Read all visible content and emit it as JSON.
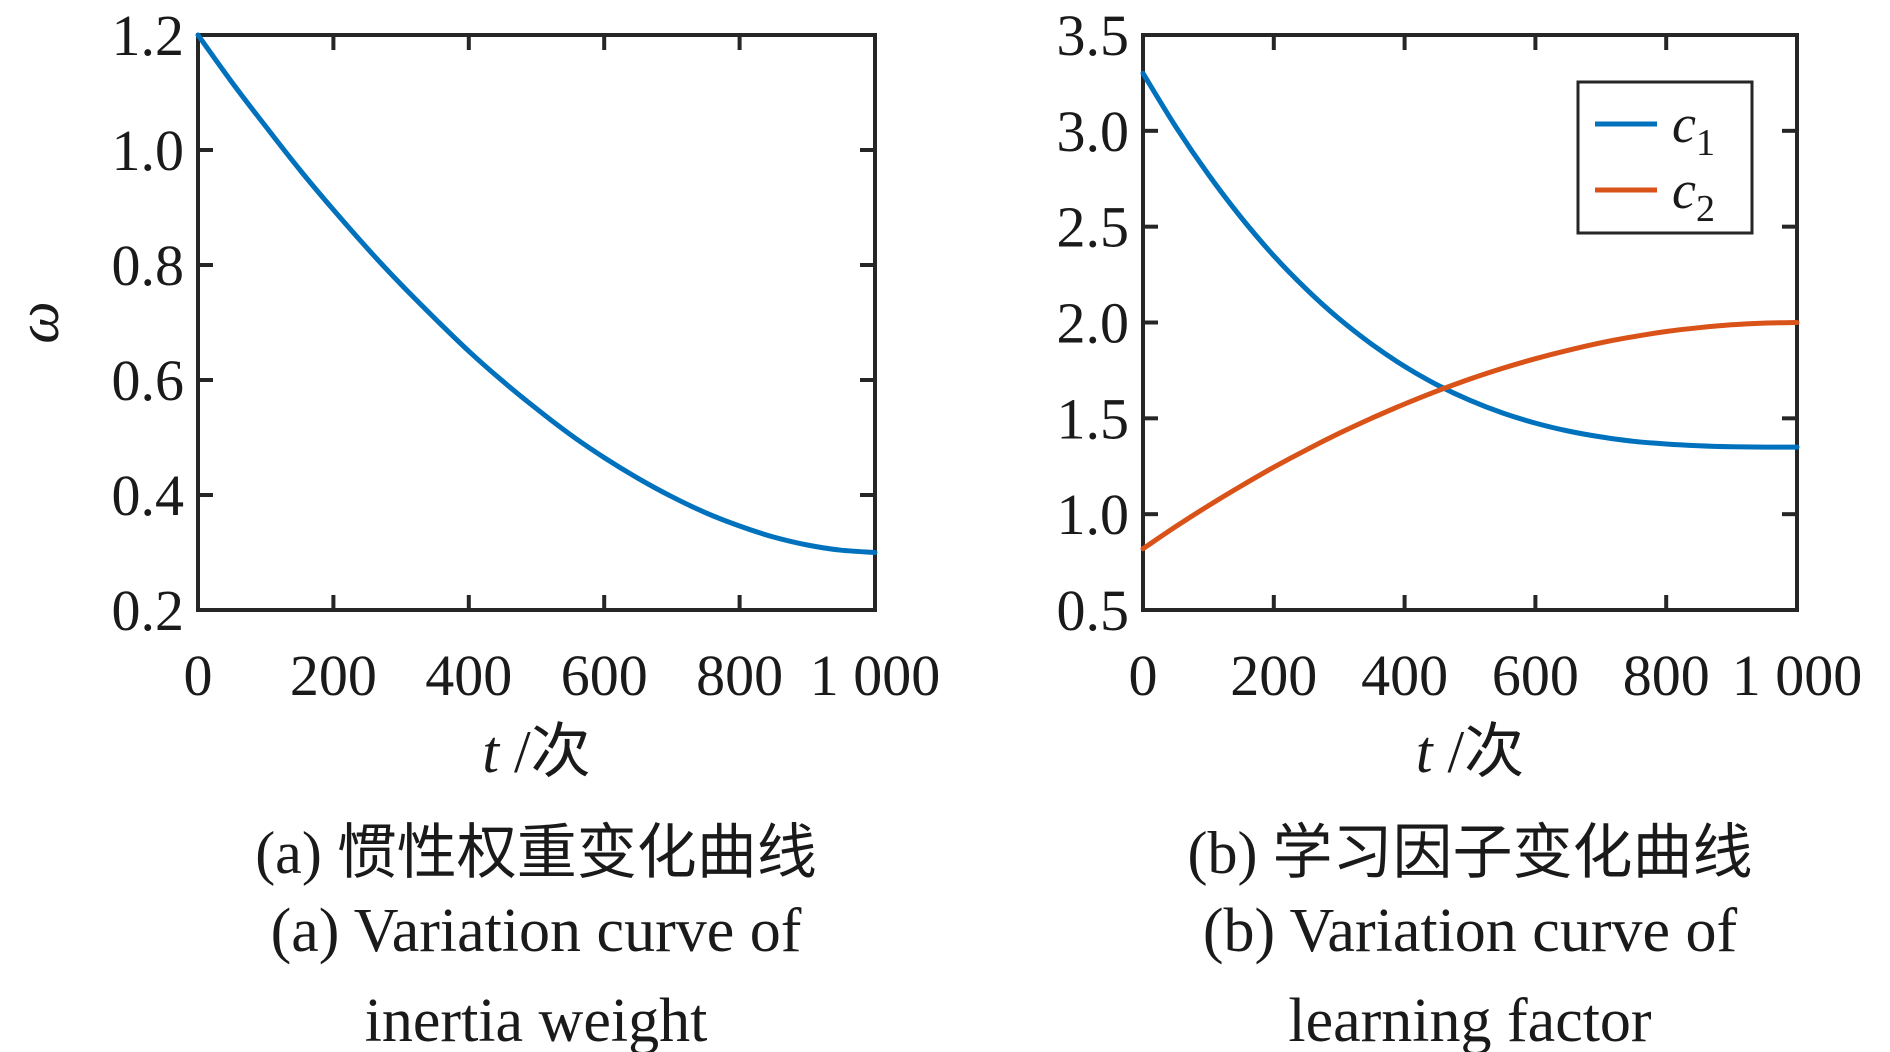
{
  "figure": {
    "background": "#ffffff",
    "axis_color": "#262626",
    "text_color": "#1a1a1a"
  },
  "chart_data": [
    {
      "id": "a",
      "type": "line",
      "title": "",
      "xlabel_var": "t",
      "xlabel_unit": " /次",
      "ylabel": "ω",
      "xlim": [
        0,
        1000
      ],
      "ylim": [
        0.2,
        1.2
      ],
      "grid": false,
      "xticks": [
        0,
        200,
        400,
        600,
        800,
        1000
      ],
      "xtick_labels": [
        "0",
        "200",
        "400",
        "600",
        "800",
        "1 000"
      ],
      "yticks": [
        1.2,
        1.0,
        0.8,
        0.6,
        0.4,
        0.2
      ],
      "ytick_labels": [
        "1.2",
        "1.0",
        "0.8",
        "0.6",
        "0.4",
        "0.2"
      ],
      "x": [
        0,
        50,
        100,
        150,
        200,
        250,
        300,
        350,
        400,
        450,
        500,
        550,
        600,
        650,
        700,
        750,
        800,
        850,
        900,
        950,
        1000
      ],
      "series": [
        {
          "name": "omega",
          "color": "#0072BD",
          "values": [
            1.2,
            1.118,
            1.041,
            0.966,
            0.896,
            0.829,
            0.766,
            0.707,
            0.65,
            0.598,
            0.55,
            0.505,
            0.465,
            0.429,
            0.397,
            0.369,
            0.346,
            0.327,
            0.313,
            0.304,
            0.3
          ]
        }
      ],
      "legend": null
    },
    {
      "id": "b",
      "type": "line",
      "title": "",
      "xlabel_var": "t",
      "xlabel_unit": " /次",
      "ylabel": "",
      "xlim": [
        0,
        1000
      ],
      "ylim": [
        0.5,
        3.5
      ],
      "grid": false,
      "xticks": [
        0,
        200,
        400,
        600,
        800,
        1000
      ],
      "xtick_labels": [
        "0",
        "200",
        "400",
        "600",
        "800",
        "1 000"
      ],
      "yticks": [
        3.5,
        3.0,
        2.5,
        2.0,
        1.5,
        1.0,
        0.5
      ],
      "ytick_labels": [
        "3.5",
        "3.0",
        "2.5",
        "2.0",
        "1.5",
        "1.0",
        "0.5"
      ],
      "x": [
        0,
        50,
        100,
        150,
        200,
        250,
        300,
        350,
        400,
        450,
        500,
        550,
        600,
        650,
        700,
        750,
        800,
        850,
        900,
        950,
        1000
      ],
      "series": [
        {
          "name": "c1",
          "color": "#0072BD",
          "values": [
            3.3,
            3.022,
            2.772,
            2.548,
            2.348,
            2.173,
            2.019,
            1.886,
            1.771,
            1.674,
            1.594,
            1.528,
            1.475,
            1.434,
            1.403,
            1.38,
            1.366,
            1.357,
            1.352,
            1.35,
            1.35
          ]
        },
        {
          "name": "c2",
          "color": "#D95319",
          "values": [
            0.82,
            0.935,
            1.044,
            1.147,
            1.245,
            1.336,
            1.422,
            1.501,
            1.575,
            1.643,
            1.705,
            1.761,
            1.811,
            1.855,
            1.894,
            1.926,
            1.953,
            1.973,
            1.988,
            1.997,
            2.0
          ]
        }
      ],
      "legend": {
        "position": "top-right",
        "entries": [
          {
            "base": "c",
            "sub": "1",
            "color": "#0072BD"
          },
          {
            "base": "c",
            "sub": "2",
            "color": "#D95319"
          }
        ]
      }
    }
  ],
  "captions": {
    "a_zh": "(a) 惯性权重变化曲线",
    "a_en_line1": "(a) Variation curve of",
    "a_en_line2": "inertia weight",
    "b_zh": "(b) 学习因子变化曲线",
    "b_en_line1": "(b) Variation curve of",
    "b_en_line2": "learning factor"
  }
}
